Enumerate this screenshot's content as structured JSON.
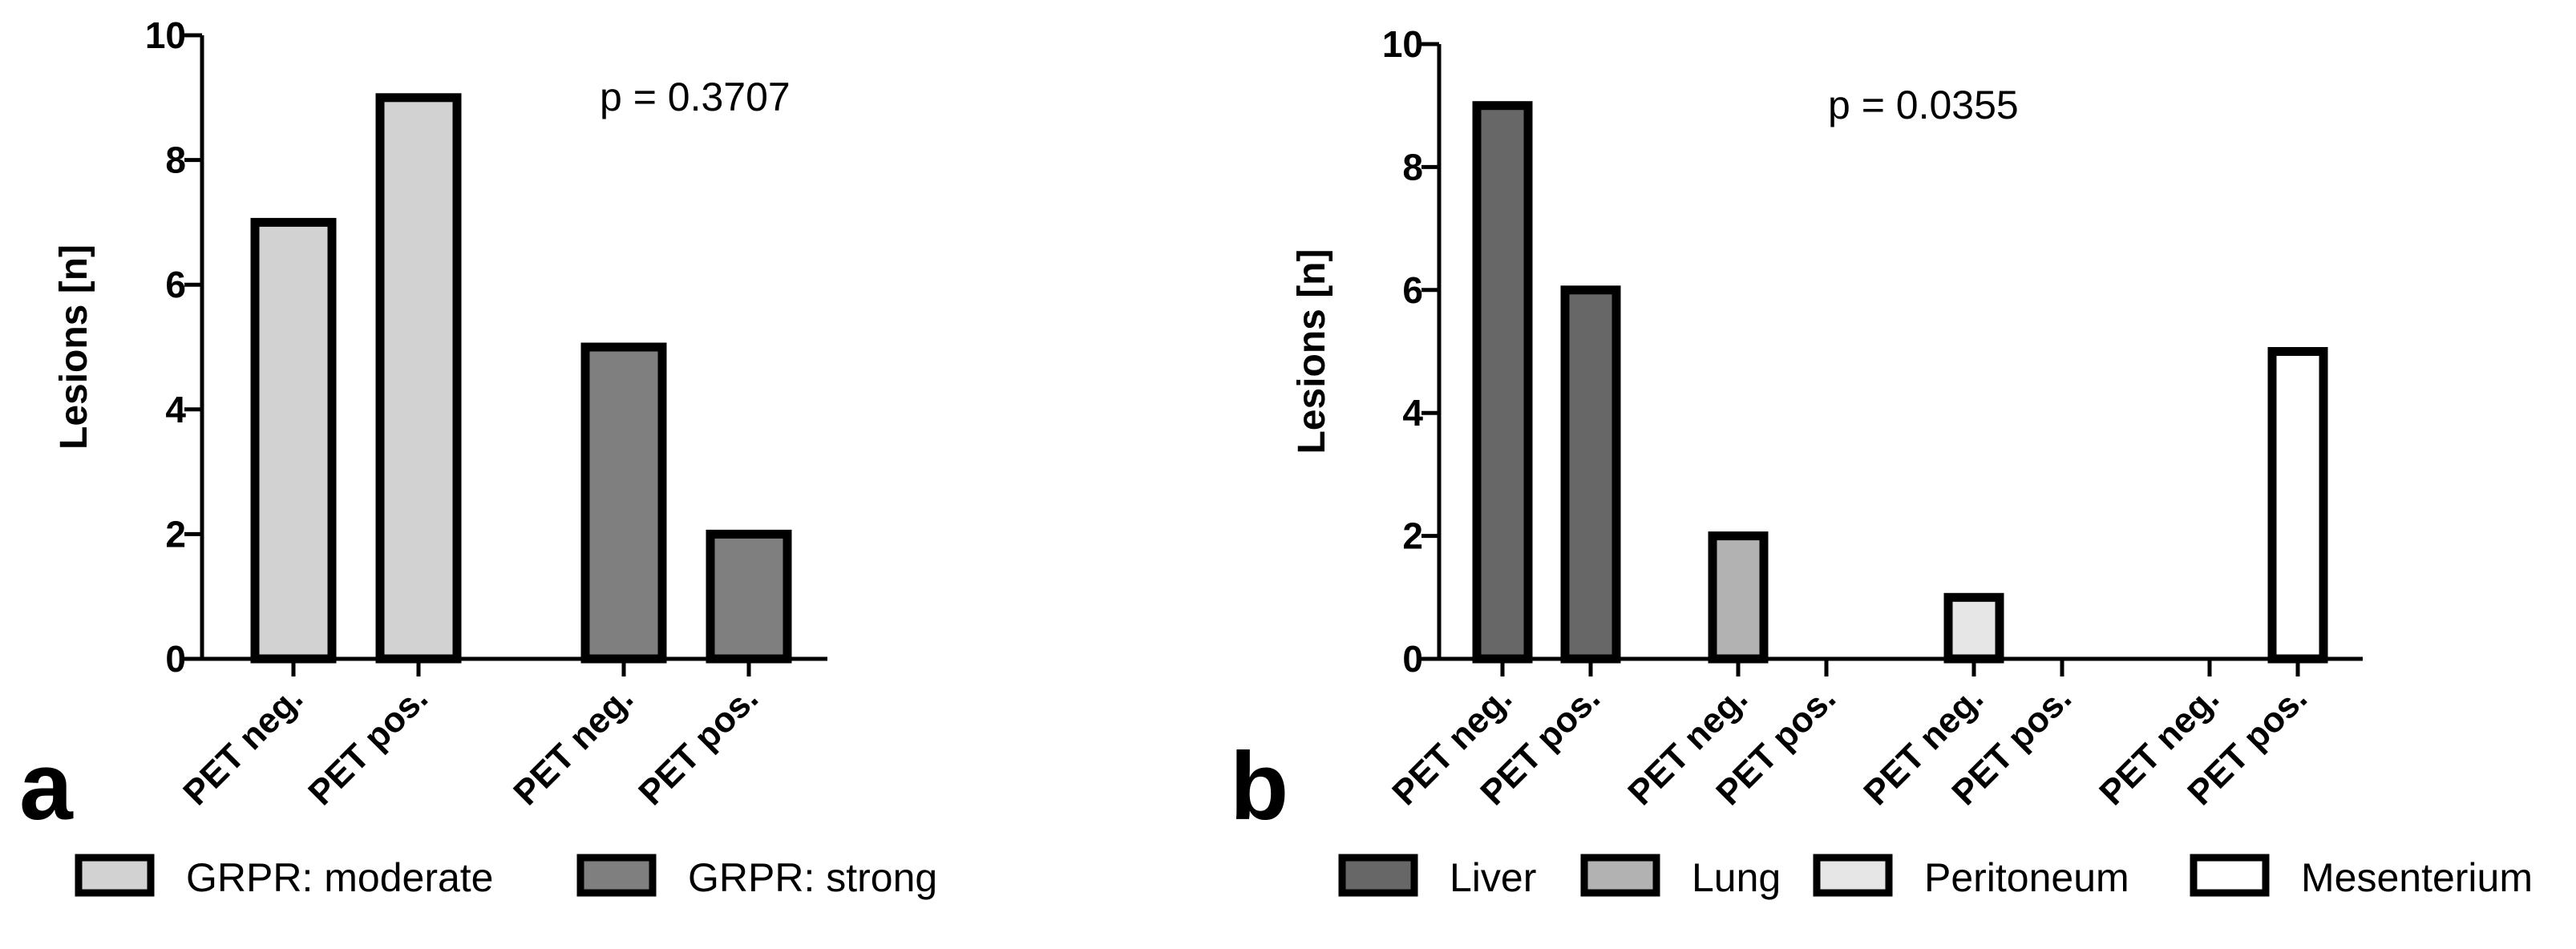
{
  "chart_data": [
    {
      "type": "bar",
      "panel_label": "a",
      "annotation": "p = 0.3707",
      "ylabel": "Lesions [n]",
      "ylim": [
        0,
        10
      ],
      "yticks": [
        "0",
        "2",
        "4",
        "6",
        "8",
        "10"
      ],
      "xlabel": "",
      "categories": [
        "PET neg.",
        "PET pos.",
        "PET neg.",
        "PET pos."
      ],
      "series": [
        {
          "name": "GRPR: moderate",
          "color": "#d2d2d2",
          "values": [
            7,
            9,
            null,
            null
          ]
        },
        {
          "name": "GRPR: strong",
          "color": "#7f7f7f",
          "values": [
            null,
            null,
            5,
            2
          ]
        }
      ]
    },
    {
      "type": "bar",
      "panel_label": "b",
      "annotation": "p = 0.0355",
      "ylabel": "Lesions [n]",
      "ylim": [
        0,
        10
      ],
      "yticks": [
        "0",
        "2",
        "4",
        "6",
        "8",
        "10"
      ],
      "xlabel": "",
      "categories": [
        "PET neg.",
        "PET pos.",
        "PET neg.",
        "PET pos.",
        "PET neg.",
        "PET pos.",
        "PET neg.",
        "PET pos."
      ],
      "series": [
        {
          "name": "Liver",
          "color": "#676767",
          "values": [
            9,
            6,
            null,
            null,
            null,
            null,
            null,
            null
          ]
        },
        {
          "name": "Lung",
          "color": "#b2b2b2",
          "values": [
            null,
            null,
            2,
            0,
            null,
            null,
            null,
            null
          ]
        },
        {
          "name": "Peritoneum",
          "color": "#e6e6e6",
          "values": [
            null,
            null,
            null,
            null,
            1,
            0,
            null,
            null
          ]
        },
        {
          "name": "Mesenterium",
          "color": "#ffffff",
          "values": [
            null,
            null,
            null,
            null,
            null,
            null,
            0,
            5
          ]
        }
      ]
    }
  ]
}
